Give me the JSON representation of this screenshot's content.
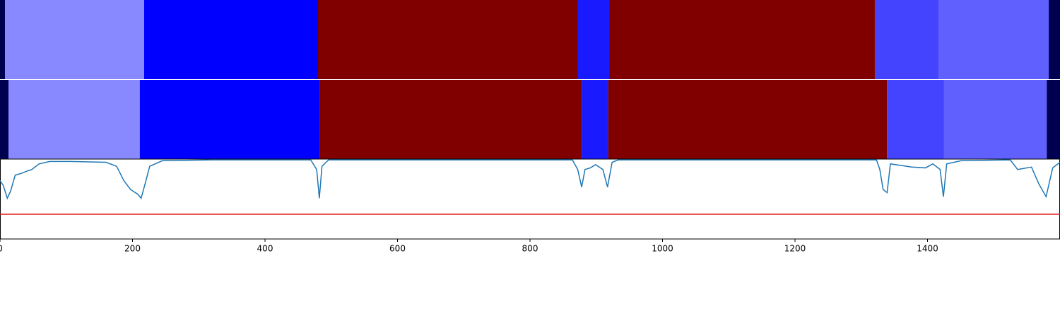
{
  "chart_data": [
    {
      "type": "segments",
      "xlim": [
        0,
        1600
      ],
      "segments": [
        {
          "start": 0,
          "end": 7.5,
          "color": "#000050"
        },
        {
          "start": 7.5,
          "end": 217.6,
          "color": "#8888ff"
        },
        {
          "start": 217.6,
          "end": 480,
          "color": "#0000ff"
        },
        {
          "start": 480,
          "end": 872.5,
          "color": "#800000"
        },
        {
          "start": 872.5,
          "end": 919.5,
          "color": "#1a1aff"
        },
        {
          "start": 919.5,
          "end": 1320.5,
          "color": "#800000"
        },
        {
          "start": 1320.5,
          "end": 1416.5,
          "color": "#4444ff"
        },
        {
          "start": 1416.5,
          "end": 1583,
          "color": "#6060ff"
        },
        {
          "start": 1583,
          "end": 1600,
          "color": "#000050"
        }
      ]
    },
    {
      "type": "segments",
      "xlim": [
        0,
        1600
      ],
      "segments": [
        {
          "start": 0,
          "end": 12.8,
          "color": "#000050"
        },
        {
          "start": 12.8,
          "end": 211,
          "color": "#8888ff"
        },
        {
          "start": 211,
          "end": 483,
          "color": "#0000ff"
        },
        {
          "start": 483,
          "end": 878,
          "color": "#800000"
        },
        {
          "start": 878,
          "end": 918,
          "color": "#1a1aff"
        },
        {
          "start": 918,
          "end": 1339,
          "color": "#800000"
        },
        {
          "start": 1339,
          "end": 1425,
          "color": "#4444ff"
        },
        {
          "start": 1425,
          "end": 1580,
          "color": "#6060ff"
        },
        {
          "start": 1580,
          "end": 1600,
          "color": "#000050"
        }
      ]
    },
    {
      "type": "line",
      "xlim": [
        0,
        1600
      ],
      "ylim": [
        0,
        1
      ],
      "xticks": [
        0,
        200,
        400,
        600,
        800,
        1000,
        1200,
        1400
      ],
      "threshold": {
        "value": 0.31,
        "color": "#e41a1c"
      },
      "series": [
        {
          "color": "#1f77b4",
          "x": [
            0,
            5,
            11,
            16,
            23,
            32,
            41,
            48,
            59,
            75,
            107,
            160,
            176,
            187,
            197,
            208,
            213,
            219,
            226,
            245,
            320,
            469,
            478,
            482,
            486,
            496,
            864,
            872,
            878,
            883,
            891,
            899,
            910,
            917,
            924,
            933,
            1323,
            1328,
            1333,
            1339,
            1344,
            1376,
            1397,
            1408,
            1419,
            1424,
            1429,
            1451,
            1525,
            1536,
            1557,
            1568,
            1579,
            1589,
            1600
          ],
          "values": [
            0.73,
            0.67,
            0.51,
            0.6,
            0.8,
            0.82,
            0.85,
            0.87,
            0.94,
            0.97,
            0.97,
            0.96,
            0.91,
            0.73,
            0.62,
            0.56,
            0.51,
            0.69,
            0.91,
            0.98,
            0.99,
            0.99,
            0.87,
            0.51,
            0.91,
            0.99,
            0.99,
            0.87,
            0.65,
            0.87,
            0.89,
            0.93,
            0.87,
            0.65,
            0.96,
            0.99,
            0.99,
            0.87,
            0.62,
            0.58,
            0.94,
            0.9,
            0.89,
            0.94,
            0.87,
            0.53,
            0.94,
            0.98,
            0.99,
            0.87,
            0.9,
            0.69,
            0.53,
            0.89,
            0.96
          ]
        }
      ]
    }
  ]
}
